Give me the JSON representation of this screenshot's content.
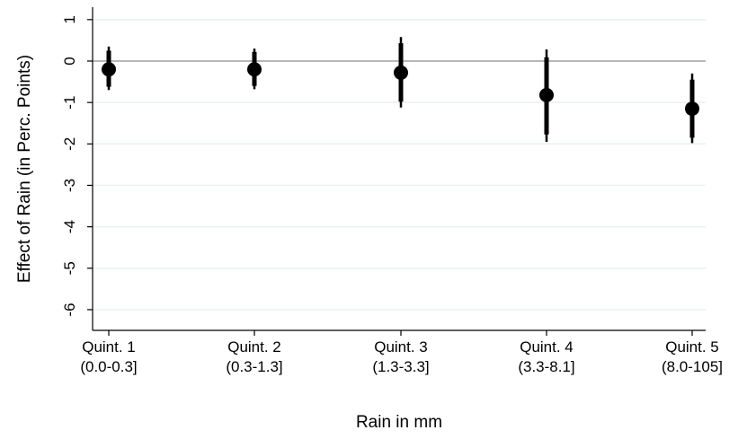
{
  "chart_data": {
    "type": "scatter",
    "xlabel": "Rain in mm",
    "ylabel": "Effect of Rain (in Perc. Points)",
    "ylim": [
      -6.5,
      1.3
    ],
    "yticks": [
      1,
      0,
      -1,
      -2,
      -3,
      -4,
      -5,
      -6
    ],
    "grid": true,
    "legend": "none",
    "reference_line": 0,
    "categories": [
      {
        "line1": "Quint. 1",
        "line2": "(0.0-0.3]"
      },
      {
        "line1": "Quint. 2",
        "line2": "(0.3-1.3]"
      },
      {
        "line1": "Quint. 3",
        "line2": "(1.3-3.3]"
      },
      {
        "line1": "Quint. 4",
        "line2": "(3.3-8.1]"
      },
      {
        "line1": "Quint. 5",
        "line2": "(8.0-105]"
      }
    ],
    "points": [
      {
        "estimate": -0.2,
        "ci95": [
          -0.7,
          0.35
        ],
        "ci90": [
          -0.62,
          0.25
        ]
      },
      {
        "estimate": -0.2,
        "ci95": [
          -0.68,
          0.3
        ],
        "ci90": [
          -0.6,
          0.22
        ]
      },
      {
        "estimate": -0.28,
        "ci95": [
          -1.12,
          0.58
        ],
        "ci90": [
          -0.98,
          0.43
        ]
      },
      {
        "estimate": -0.82,
        "ci95": [
          -1.95,
          0.28
        ],
        "ci90": [
          -1.77,
          0.09
        ]
      },
      {
        "estimate": -1.15,
        "ci95": [
          -1.98,
          -0.3
        ],
        "ci90": [
          -1.85,
          -0.45
        ]
      }
    ],
    "colors": {
      "marker": "#000000",
      "grid": "#eaf0f0",
      "zero_line": "#a0a0a0",
      "axis": "#000000"
    }
  }
}
